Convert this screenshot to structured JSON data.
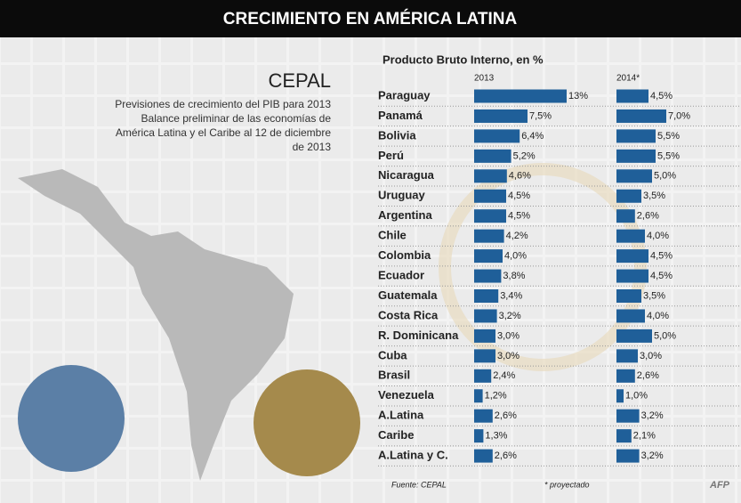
{
  "header": {
    "title": "CRECIMIENTO EN AMÉRICA LATINA"
  },
  "intro": {
    "organization": "CEPAL",
    "lines": [
      "Previsiones de crecimiento del PIB para 2013",
      "Balance preliminar de las economías de",
      "América Latina y el Caribe al 12 de diciembre",
      "de 2013"
    ]
  },
  "chart_data": {
    "type": "bar",
    "title": "Producto Bruto Interno, en %",
    "orientation": "horizontal",
    "categories": [
      "Paraguay",
      "Panamá",
      "Bolivia",
      "Perú",
      "Nicaragua",
      "Uruguay",
      "Argentina",
      "Chile",
      "Colombia",
      "Ecuador",
      "Guatemala",
      "Costa Rica",
      "R. Dominicana",
      "Cuba",
      "Brasil",
      "Venezuela",
      "A.Latina",
      "Caribe",
      "A.Latina y C."
    ],
    "xlim": [
      0,
      17
    ],
    "series": [
      {
        "name": "2013",
        "color": "#1f5f99",
        "values": [
          13,
          7.5,
          6.4,
          5.2,
          4.6,
          4.5,
          4.5,
          4.2,
          4.0,
          3.8,
          3.4,
          3.2,
          3.0,
          3.0,
          2.4,
          1.2,
          2.6,
          1.3,
          2.6
        ],
        "value_labels": [
          "13%",
          "7,5%",
          "6,4%",
          "5,2%",
          "4,6%",
          "4,5%",
          "4,5%",
          "4,2%",
          "4,0%",
          "3,8%",
          "3,4%",
          "3,2%",
          "3,0%",
          "3,0%",
          "2,4%",
          "1,2%",
          "2,6%",
          "1,3%",
          "2,6%"
        ]
      },
      {
        "name": "2014*",
        "color": "#1f5f99",
        "values": [
          4.5,
          7.0,
          5.5,
          5.5,
          5.0,
          3.5,
          2.6,
          4.0,
          4.5,
          4.5,
          3.5,
          4.0,
          5.0,
          3.0,
          2.6,
          1.0,
          3.2,
          2.1,
          3.2
        ],
        "value_labels": [
          "4,5%",
          "7,0%",
          "5,5%",
          "5,5%",
          "5,0%",
          "3,5%",
          "2,6%",
          "4,0%",
          "4,5%",
          "4,5%",
          "3,5%",
          "4,0%",
          "5,0%",
          "3,0%",
          "2,6%",
          "1,0%",
          "3,2%",
          "2,1%",
          "3,2%"
        ]
      }
    ]
  },
  "footer": {
    "source": "Fuente: CEPAL",
    "note": "* proyectado",
    "credit": "AFP"
  }
}
